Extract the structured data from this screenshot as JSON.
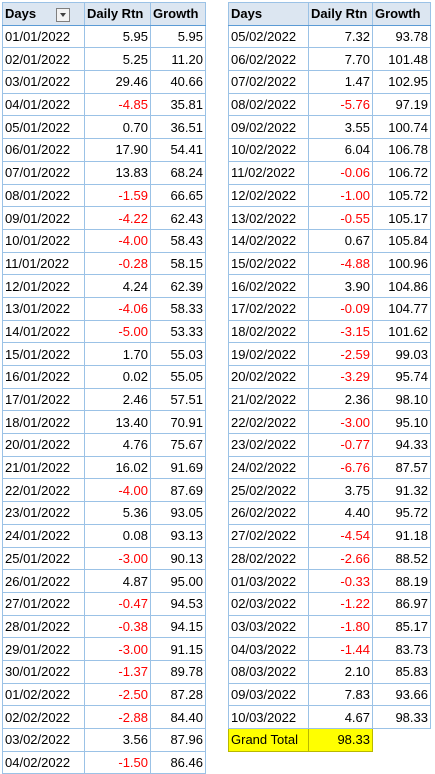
{
  "headers": {
    "days": "Days",
    "daily_rtn": "Daily Rtn",
    "growth": "Growth"
  },
  "grand_total": {
    "label": "Grand Total",
    "value": "98.33"
  },
  "left_rows": [
    [
      "01/01/2022",
      "5.95",
      "5.95"
    ],
    [
      "02/01/2022",
      "5.25",
      "11.20"
    ],
    [
      "03/01/2022",
      "29.46",
      "40.66"
    ],
    [
      "04/01/2022",
      "-4.85",
      "35.81"
    ],
    [
      "05/01/2022",
      "0.70",
      "36.51"
    ],
    [
      "06/01/2022",
      "17.90",
      "54.41"
    ],
    [
      "07/01/2022",
      "13.83",
      "68.24"
    ],
    [
      "08/01/2022",
      "-1.59",
      "66.65"
    ],
    [
      "09/01/2022",
      "-4.22",
      "62.43"
    ],
    [
      "10/01/2022",
      "-4.00",
      "58.43"
    ],
    [
      "11/01/2022",
      "-0.28",
      "58.15"
    ],
    [
      "12/01/2022",
      "4.24",
      "62.39"
    ],
    [
      "13/01/2022",
      "-4.06",
      "58.33"
    ],
    [
      "14/01/2022",
      "-5.00",
      "53.33"
    ],
    [
      "15/01/2022",
      "1.70",
      "55.03"
    ],
    [
      "16/01/2022",
      "0.02",
      "55.05"
    ],
    [
      "17/01/2022",
      "2.46",
      "57.51"
    ],
    [
      "18/01/2022",
      "13.40",
      "70.91"
    ],
    [
      "20/01/2022",
      "4.76",
      "75.67"
    ],
    [
      "21/01/2022",
      "16.02",
      "91.69"
    ],
    [
      "22/01/2022",
      "-4.00",
      "87.69"
    ],
    [
      "23/01/2022",
      "5.36",
      "93.05"
    ],
    [
      "24/01/2022",
      "0.08",
      "93.13"
    ],
    [
      "25/01/2022",
      "-3.00",
      "90.13"
    ],
    [
      "26/01/2022",
      "4.87",
      "95.00"
    ],
    [
      "27/01/2022",
      "-0.47",
      "94.53"
    ],
    [
      "28/01/2022",
      "-0.38",
      "94.15"
    ],
    [
      "29/01/2022",
      "-3.00",
      "91.15"
    ],
    [
      "30/01/2022",
      "-1.37",
      "89.78"
    ],
    [
      "01/02/2022",
      "-2.50",
      "87.28"
    ],
    [
      "02/02/2022",
      "-2.88",
      "84.40"
    ],
    [
      "03/02/2022",
      "3.56",
      "87.96"
    ],
    [
      "04/02/2022",
      "-1.50",
      "86.46"
    ]
  ],
  "right_rows": [
    [
      "05/02/2022",
      "7.32",
      "93.78"
    ],
    [
      "06/02/2022",
      "7.70",
      "101.48"
    ],
    [
      "07/02/2022",
      "1.47",
      "102.95"
    ],
    [
      "08/02/2022",
      "-5.76",
      "97.19"
    ],
    [
      "09/02/2022",
      "3.55",
      "100.74"
    ],
    [
      "10/02/2022",
      "6.04",
      "106.78"
    ],
    [
      "11/02/2022",
      "-0.06",
      "106.72"
    ],
    [
      "12/02/2022",
      "-1.00",
      "105.72"
    ],
    [
      "13/02/2022",
      "-0.55",
      "105.17"
    ],
    [
      "14/02/2022",
      "0.67",
      "105.84"
    ],
    [
      "15/02/2022",
      "-4.88",
      "100.96"
    ],
    [
      "16/02/2022",
      "3.90",
      "104.86"
    ],
    [
      "17/02/2022",
      "-0.09",
      "104.77"
    ],
    [
      "18/02/2022",
      "-3.15",
      "101.62"
    ],
    [
      "19/02/2022",
      "-2.59",
      "99.03"
    ],
    [
      "20/02/2022",
      "-3.29",
      "95.74"
    ],
    [
      "21/02/2022",
      "2.36",
      "98.10"
    ],
    [
      "22/02/2022",
      "-3.00",
      "95.10"
    ],
    [
      "23/02/2022",
      "-0.77",
      "94.33"
    ],
    [
      "24/02/2022",
      "-6.76",
      "87.57"
    ],
    [
      "25/02/2022",
      "3.75",
      "91.32"
    ],
    [
      "26/02/2022",
      "4.40",
      "95.72"
    ],
    [
      "27/02/2022",
      "-4.54",
      "91.18"
    ],
    [
      "28/02/2022",
      "-2.66",
      "88.52"
    ],
    [
      "01/03/2022",
      "-0.33",
      "88.19"
    ],
    [
      "02/03/2022",
      "-1.22",
      "86.97"
    ],
    [
      "03/03/2022",
      "-1.80",
      "85.17"
    ],
    [
      "04/03/2022",
      "-1.44",
      "83.73"
    ],
    [
      "08/03/2022",
      "2.10",
      "85.83"
    ],
    [
      "09/03/2022",
      "7.83",
      "93.66"
    ],
    [
      "10/03/2022",
      "4.67",
      "98.33"
    ]
  ],
  "colors": {
    "negative": "#ff0000",
    "grand_total_fill": "#ffff00",
    "header_fill": "#dce6f1"
  }
}
